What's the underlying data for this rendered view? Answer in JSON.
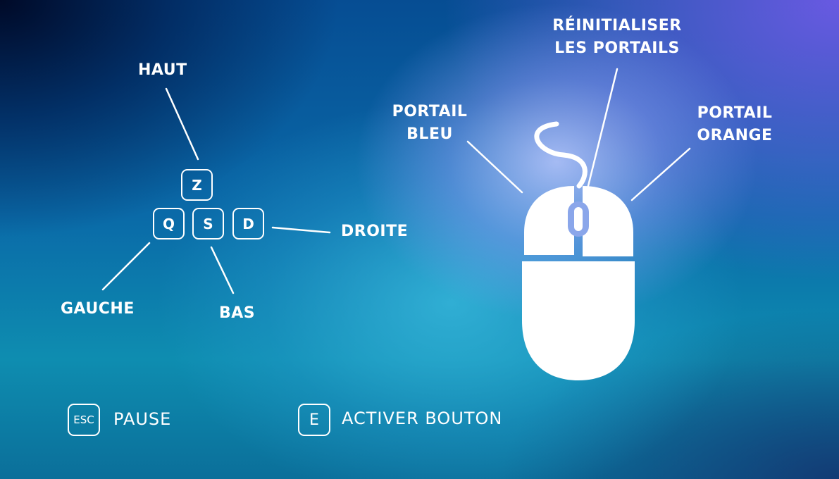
{
  "keyboard": {
    "keys": {
      "up": "Z",
      "left": "Q",
      "down": "S",
      "right": "D"
    },
    "labels": {
      "up": "HAUT",
      "left": "GAUCHE",
      "down": "BAS",
      "right": "DROITE"
    }
  },
  "mouse": {
    "left_button_line1": "PORTAIL",
    "left_button_line2": "BLEU",
    "right_button_line1": "PORTAIL",
    "right_button_line2": "ORANGE",
    "wheel_line1": "RÉINITIALISER",
    "wheel_line2": "LES PORTAILS"
  },
  "extra_keys": {
    "pause_key": "ESC",
    "pause_label": "PAUSE",
    "activate_key": "E",
    "activate_label": "ACTIVER BOUTON"
  },
  "colors": {
    "foreground": "#ffffff",
    "mouse_accent": "#8aa6ea"
  }
}
